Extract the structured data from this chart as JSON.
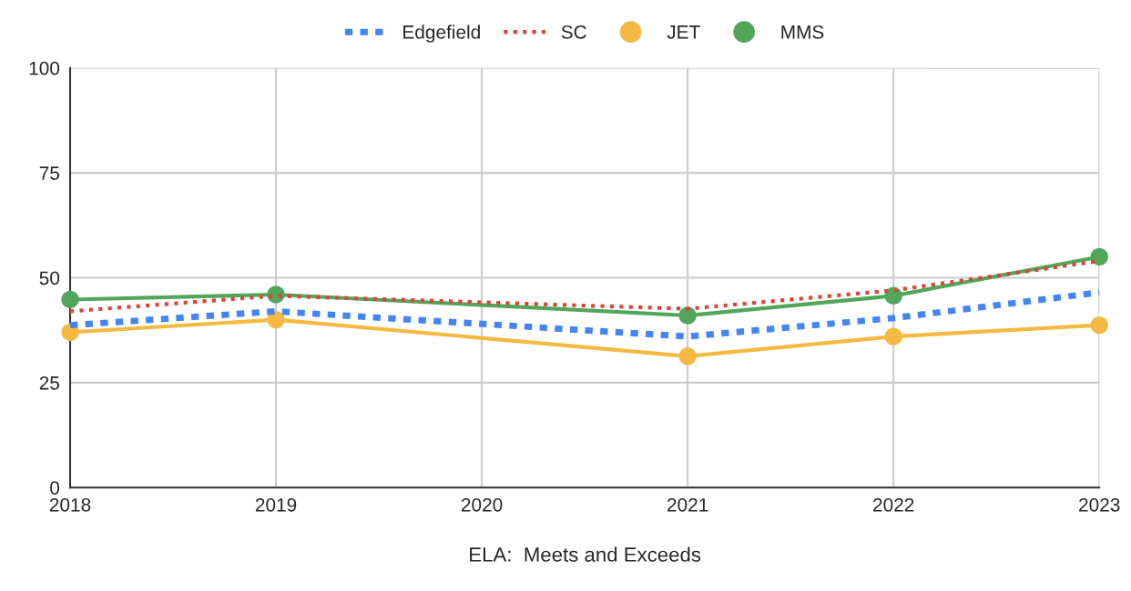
{
  "chart_data": {
    "type": "line",
    "xlabel": "ELA:  Meets and Exceeds",
    "xlim": [
      2018,
      2023
    ],
    "xticks": [
      2018,
      2019,
      2020,
      2021,
      2022,
      2023
    ],
    "ylim": [
      0,
      100
    ],
    "yticks": [
      0,
      25,
      50,
      75,
      100
    ],
    "grid": true,
    "legend": "top",
    "series": [
      {
        "name": "Edgefield",
        "color": "#4285f4",
        "line_style": "dashed",
        "marker": "none",
        "x": [
          2018,
          2019,
          2021,
          2022,
          2023
        ],
        "values": [
          38.7,
          42,
          36,
          40.4,
          46.5
        ]
      },
      {
        "name": "SC",
        "color": "#db4437",
        "line_style": "dotted",
        "marker": "none",
        "x": [
          2018,
          2019,
          2021,
          2022,
          2023
        ],
        "values": [
          42,
          45.7,
          42.6,
          47,
          54
        ]
      },
      {
        "name": "JET",
        "color": "#f4b942",
        "line_style": "solid",
        "marker": "circle",
        "x": [
          2018,
          2019,
          2021,
          2022,
          2023
        ],
        "values": [
          37,
          40,
          31.3,
          36,
          38.7
        ]
      },
      {
        "name": "MMS",
        "color": "#51a65a",
        "line_style": "solid",
        "marker": "circle",
        "x": [
          2018,
          2019,
          2021,
          2022,
          2023
        ],
        "values": [
          44.8,
          46,
          41,
          45.7,
          55
        ]
      }
    ]
  }
}
